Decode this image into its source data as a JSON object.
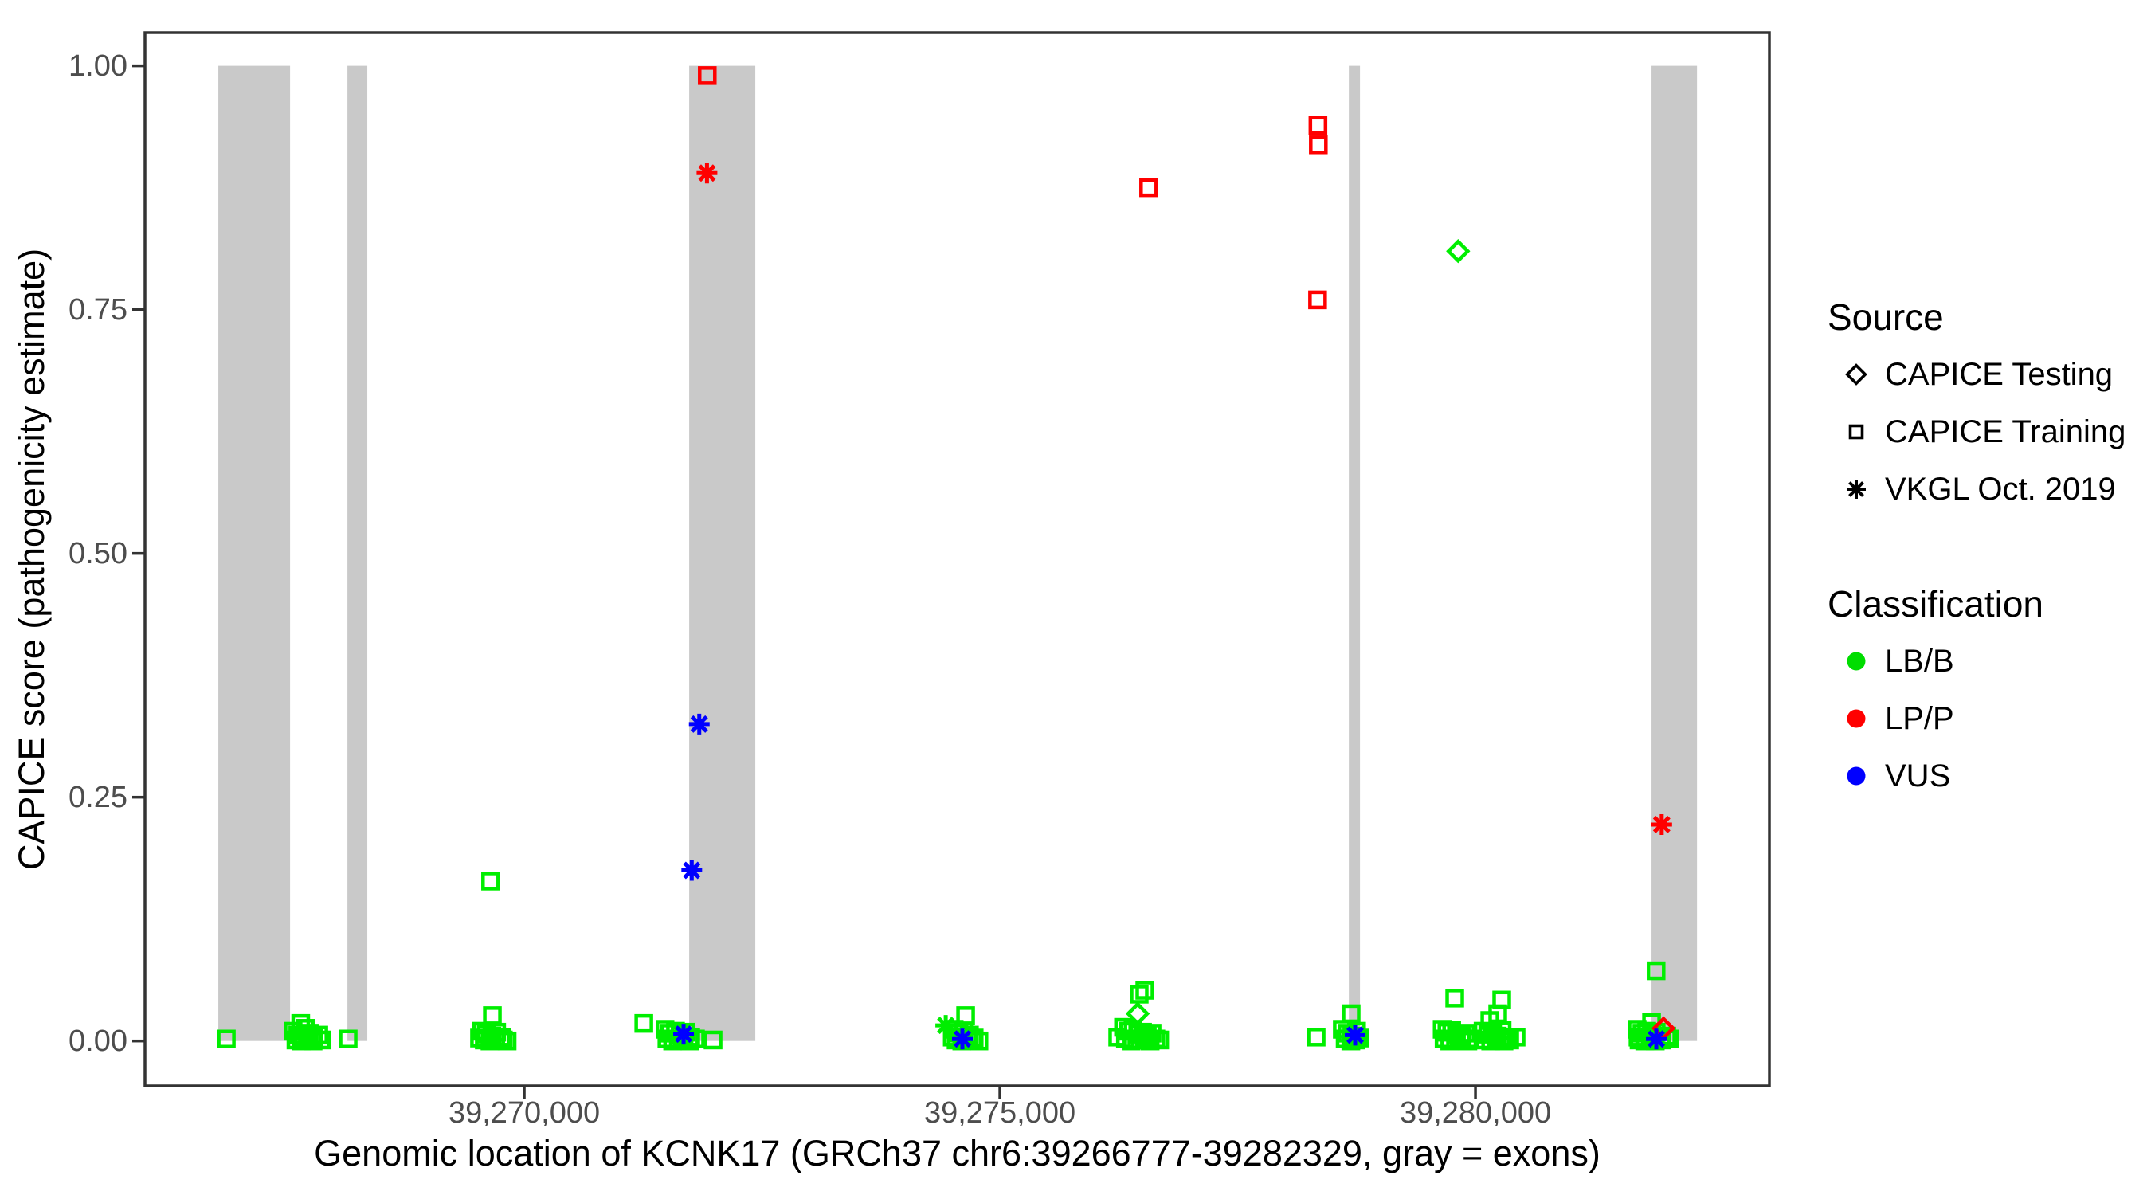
{
  "chart_data": {
    "type": "scatter",
    "title": "",
    "xlabel": "Genomic location of KCNK17 (GRCh37 chr6:39266777-39282329, gray = exons)",
    "ylabel": "CAPICE score (pathogenicity estimate)",
    "x_gene_range": [
      39266777,
      39282329
    ],
    "x_range": [
      39266013,
      39283090
    ],
    "y_range": [
      -0.046,
      1.034
    ],
    "ylim_labeled": [
      0.0,
      1.0
    ],
    "grid": "off",
    "x_ticks": [
      {
        "label": "39,270,000",
        "value": 39270000
      },
      {
        "label": "39,275,000",
        "value": 39275000
      },
      {
        "label": "39,280,000",
        "value": 39280000
      }
    ],
    "y_ticks": [
      {
        "label": "1.00",
        "value": 1.0
      },
      {
        "label": "0.75",
        "value": 0.75
      },
      {
        "label": "0.50",
        "value": 0.5
      },
      {
        "label": "0.25",
        "value": 0.25
      },
      {
        "label": "0.00",
        "value": 0.0
      }
    ],
    "colors": {
      "LB/B": "#00EE00",
      "LP/P": "#FF0000",
      "VUS": "#0000FF",
      "exon": "#C9C9C9",
      "axis": "#333333",
      "tick_text": "#4d4d4d"
    },
    "shapes": {
      "CAPICE Testing": "diamond",
      "CAPICE Training": "square",
      "VKGL Oct. 2019": "asterisk"
    },
    "exons_bp": [
      [
        39266784,
        39267538
      ],
      [
        39268141,
        39268350
      ],
      [
        39271734,
        39272429
      ],
      [
        39278669,
        39278786
      ],
      [
        39281851,
        39282329
      ]
    ],
    "point_format": [
      "bp",
      "score",
      "source",
      "classification"
    ],
    "points": [
      [
        39271924,
        0.99,
        "CAPICE Training",
        "LP/P"
      ],
      [
        39271921,
        0.89,
        "VKGL Oct. 2019",
        "LP/P"
      ],
      [
        39271840,
        0.325,
        "VKGL Oct. 2019",
        "VUS"
      ],
      [
        39271761,
        0.175,
        "VKGL Oct. 2019",
        "VUS"
      ],
      [
        39269646,
        0.164,
        "CAPICE Training",
        "LB/B"
      ],
      [
        39276564,
        0.875,
        "CAPICE Training",
        "LP/P"
      ],
      [
        39278344,
        0.939,
        "CAPICE Training",
        "LP/P"
      ],
      [
        39278348,
        0.919,
        "CAPICE Training",
        "LP/P"
      ],
      [
        39278340,
        0.76,
        "CAPICE Training",
        "LP/P"
      ],
      [
        39279818,
        0.81,
        "CAPICE Testing",
        "LB/B"
      ],
      [
        39281958,
        0.222,
        "VKGL Oct. 2019",
        "LP/P"
      ],
      [
        39281899,
        0.072,
        "CAPICE Training",
        "LB/B"
      ],
      [
        39266868,
        0.002,
        "CAPICE Training",
        "LB/B"
      ],
      [
        39267650,
        0.018,
        "CAPICE Training",
        "LB/B"
      ],
      [
        39267700,
        0.013,
        "CAPICE Training",
        "LB/B"
      ],
      [
        39267570,
        0.01,
        "CAPICE Training",
        "LB/B"
      ],
      [
        39267620,
        0.006,
        "CAPICE Training",
        "LB/B"
      ],
      [
        39267680,
        0.004,
        "CAPICE Training",
        "LB/B"
      ],
      [
        39267740,
        0.008,
        "CAPICE Training",
        "LB/B"
      ],
      [
        39267790,
        0.003,
        "CAPICE Training",
        "LB/B"
      ],
      [
        39267840,
        0.006,
        "CAPICE Training",
        "LB/B"
      ],
      [
        39267600,
        0.001,
        "CAPICE Training",
        "LB/B"
      ],
      [
        39267660,
        0.0,
        "CAPICE Training",
        "LB/B"
      ],
      [
        39267720,
        0.002,
        "CAPICE Training",
        "LB/B"
      ],
      [
        39267780,
        0.0,
        "CAPICE Training",
        "LB/B"
      ],
      [
        39267870,
        0.001,
        "CAPICE Training",
        "LB/B"
      ],
      [
        39268149,
        0.002,
        "CAPICE Training",
        "LB/B"
      ],
      [
        39269665,
        0.026,
        "CAPICE Training",
        "LB/B"
      ],
      [
        39269550,
        0.01,
        "CAPICE Training",
        "LB/B"
      ],
      [
        39269600,
        0.007,
        "CAPICE Training",
        "LB/B"
      ],
      [
        39269660,
        0.005,
        "CAPICE Training",
        "LB/B"
      ],
      [
        39269710,
        0.009,
        "CAPICE Training",
        "LB/B"
      ],
      [
        39269760,
        0.004,
        "CAPICE Training",
        "LB/B"
      ],
      [
        39269530,
        0.003,
        "CAPICE Training",
        "LB/B"
      ],
      [
        39269580,
        0.001,
        "CAPICE Training",
        "LB/B"
      ],
      [
        39269640,
        0.0,
        "CAPICE Training",
        "LB/B"
      ],
      [
        39269700,
        0.002,
        "CAPICE Training",
        "LB/B"
      ],
      [
        39269780,
        0.001,
        "CAPICE Training",
        "LB/B"
      ],
      [
        39269820,
        0.0,
        "CAPICE Training",
        "LB/B"
      ],
      [
        39271257,
        0.018,
        "CAPICE Training",
        "LB/B"
      ],
      [
        39271480,
        0.012,
        "CAPICE Training",
        "LB/B"
      ],
      [
        39271530,
        0.008,
        "CAPICE Training",
        "LB/B"
      ],
      [
        39271590,
        0.01,
        "CAPICE Training",
        "LB/B"
      ],
      [
        39271640,
        0.006,
        "CAPICE Training",
        "LB/B"
      ],
      [
        39271700,
        0.009,
        "CAPICE Training",
        "LB/B"
      ],
      [
        39271750,
        0.004,
        "CAPICE Training",
        "LB/B"
      ],
      [
        39271500,
        0.002,
        "CAPICE Training",
        "LB/B"
      ],
      [
        39271560,
        0.0,
        "CAPICE Training",
        "LB/B"
      ],
      [
        39271620,
        0.001,
        "CAPICE Training",
        "LB/B"
      ],
      [
        39271680,
        0.003,
        "CAPICE Training",
        "LB/B"
      ],
      [
        39271740,
        0.0,
        "CAPICE Training",
        "LB/B"
      ],
      [
        39271800,
        0.002,
        "CAPICE Training",
        "LB/B"
      ],
      [
        39271675,
        0.007,
        "VKGL Oct. 2019",
        "VUS"
      ],
      [
        39271985,
        0.001,
        "CAPICE Training",
        "LB/B"
      ],
      [
        39274431,
        0.016,
        "VKGL Oct. 2019",
        "LB/B"
      ],
      [
        39274640,
        0.026,
        "CAPICE Training",
        "LB/B"
      ],
      [
        39274520,
        0.012,
        "CAPICE Training",
        "LB/B"
      ],
      [
        39274570,
        0.008,
        "CAPICE Training",
        "LB/B"
      ],
      [
        39274620,
        0.01,
        "CAPICE Training",
        "LB/B"
      ],
      [
        39274680,
        0.006,
        "CAPICE Training",
        "LB/B"
      ],
      [
        39274730,
        0.003,
        "CAPICE Training",
        "LB/B"
      ],
      [
        39274540,
        0.001,
        "CAPICE Training",
        "LB/B"
      ],
      [
        39274600,
        0.0,
        "CAPICE Training",
        "LB/B"
      ],
      [
        39274660,
        0.002,
        "CAPICE Training",
        "LB/B"
      ],
      [
        39274720,
        0.001,
        "CAPICE Training",
        "LB/B"
      ],
      [
        39274780,
        0.0,
        "CAPICE Training",
        "LB/B"
      ],
      [
        39274500,
        0.004,
        "CAPICE Training",
        "LB/B"
      ],
      [
        39274606,
        0.002,
        "VKGL Oct. 2019",
        "VUS"
      ],
      [
        39276524,
        0.052,
        "CAPICE Training",
        "LB/B"
      ],
      [
        39276465,
        0.048,
        "CAPICE Training",
        "LB/B"
      ],
      [
        39276449,
        0.028,
        "CAPICE Testing",
        "LB/B"
      ],
      [
        39276239,
        0.004,
        "CAPICE Training",
        "LB/B"
      ],
      [
        39276300,
        0.014,
        "CAPICE Training",
        "LB/B"
      ],
      [
        39276350,
        0.01,
        "CAPICE Training",
        "LB/B"
      ],
      [
        39276400,
        0.012,
        "CAPICE Training",
        "LB/B"
      ],
      [
        39276450,
        0.007,
        "CAPICE Training",
        "LB/B"
      ],
      [
        39276500,
        0.009,
        "CAPICE Training",
        "LB/B"
      ],
      [
        39276550,
        0.005,
        "CAPICE Training",
        "LB/B"
      ],
      [
        39276600,
        0.008,
        "CAPICE Training",
        "LB/B"
      ],
      [
        39276320,
        0.002,
        "CAPICE Training",
        "LB/B"
      ],
      [
        39276380,
        0.0,
        "CAPICE Training",
        "LB/B"
      ],
      [
        39276440,
        0.001,
        "CAPICE Training",
        "LB/B"
      ],
      [
        39276520,
        0.003,
        "CAPICE Training",
        "LB/B"
      ],
      [
        39276580,
        0.0,
        "CAPICE Training",
        "LB/B"
      ],
      [
        39276640,
        0.002,
        "CAPICE Training",
        "LB/B"
      ],
      [
        39276680,
        0.001,
        "CAPICE Training",
        "LB/B"
      ],
      [
        39278325,
        0.004,
        "CAPICE Training",
        "LB/B"
      ],
      [
        39278693,
        0.028,
        "CAPICE Training",
        "LB/B"
      ],
      [
        39278600,
        0.012,
        "CAPICE Training",
        "LB/B"
      ],
      [
        39278650,
        0.008,
        "CAPICE Training",
        "LB/B"
      ],
      [
        39278700,
        0.005,
        "CAPICE Training",
        "LB/B"
      ],
      [
        39278750,
        0.01,
        "CAPICE Training",
        "LB/B"
      ],
      [
        39278630,
        0.002,
        "CAPICE Training",
        "LB/B"
      ],
      [
        39278690,
        0.0,
        "CAPICE Training",
        "LB/B"
      ],
      [
        39278740,
        0.001,
        "CAPICE Training",
        "LB/B"
      ],
      [
        39278780,
        0.003,
        "CAPICE Training",
        "LB/B"
      ],
      [
        39278735,
        0.006,
        "VKGL Oct. 2019",
        "VUS"
      ],
      [
        39279782,
        0.044,
        "CAPICE Training",
        "LB/B"
      ],
      [
        39279650,
        0.012,
        "CAPICE Training",
        "LB/B"
      ],
      [
        39279700,
        0.009,
        "CAPICE Training",
        "LB/B"
      ],
      [
        39279750,
        0.011,
        "CAPICE Training",
        "LB/B"
      ],
      [
        39279800,
        0.007,
        "CAPICE Training",
        "LB/B"
      ],
      [
        39279850,
        0.005,
        "CAPICE Training",
        "LB/B"
      ],
      [
        39279900,
        0.008,
        "CAPICE Training",
        "LB/B"
      ],
      [
        39279670,
        0.002,
        "CAPICE Training",
        "LB/B"
      ],
      [
        39279730,
        0.0,
        "CAPICE Training",
        "LB/B"
      ],
      [
        39279790,
        0.001,
        "CAPICE Training",
        "LB/B"
      ],
      [
        39279860,
        0.003,
        "CAPICE Training",
        "LB/B"
      ],
      [
        39279920,
        0.0,
        "CAPICE Training",
        "LB/B"
      ],
      [
        39279940,
        0.002,
        "CAPICE Training",
        "LB/B"
      ],
      [
        39280276,
        0.042,
        "CAPICE Training",
        "LB/B"
      ],
      [
        39280234,
        0.028,
        "CAPICE Training",
        "LB/B"
      ],
      [
        39280151,
        0.021,
        "CAPICE Training",
        "LB/B"
      ],
      [
        39280080,
        0.01,
        "CAPICE Training",
        "LB/B"
      ],
      [
        39280130,
        0.007,
        "CAPICE Training",
        "LB/B"
      ],
      [
        39280180,
        0.009,
        "CAPICE Training",
        "LB/B"
      ],
      [
        39280230,
        0.005,
        "CAPICE Training",
        "LB/B"
      ],
      [
        39280280,
        0.011,
        "CAPICE Training",
        "LB/B"
      ],
      [
        39280330,
        0.004,
        "CAPICE Training",
        "LB/B"
      ],
      [
        39280100,
        0.001,
        "CAPICE Training",
        "LB/B"
      ],
      [
        39280160,
        0.0,
        "CAPICE Training",
        "LB/B"
      ],
      [
        39280220,
        0.002,
        "CAPICE Training",
        "LB/B"
      ],
      [
        39280300,
        0.0,
        "CAPICE Training",
        "LB/B"
      ],
      [
        39280360,
        0.001,
        "CAPICE Training",
        "LB/B"
      ],
      [
        39280427,
        0.004,
        "CAPICE Training",
        "LB/B"
      ],
      [
        39281851,
        0.019,
        "CAPICE Training",
        "LB/B"
      ],
      [
        39281977,
        0.013,
        "CAPICE Testing",
        "LP/P"
      ],
      [
        39281901,
        0.002,
        "VKGL Oct. 2019",
        "VUS"
      ],
      [
        39281709,
        0.004,
        "CAPICE Training",
        "LB/B"
      ],
      [
        39281700,
        0.012,
        "CAPICE Training",
        "LB/B"
      ],
      [
        39281750,
        0.008,
        "CAPICE Training",
        "LB/B"
      ],
      [
        39281800,
        0.01,
        "CAPICE Training",
        "LB/B"
      ],
      [
        39281850,
        0.006,
        "CAPICE Training",
        "LB/B"
      ],
      [
        39281900,
        0.009,
        "CAPICE Training",
        "LB/B"
      ],
      [
        39281950,
        0.003,
        "CAPICE Training",
        "LB/B"
      ],
      [
        39281720,
        0.001,
        "CAPICE Training",
        "LB/B"
      ],
      [
        39281780,
        0.0,
        "CAPICE Training",
        "LB/B"
      ],
      [
        39281840,
        0.002,
        "CAPICE Training",
        "LB/B"
      ],
      [
        39281890,
        0.0,
        "CAPICE Training",
        "LB/B"
      ],
      [
        39281960,
        0.001,
        "CAPICE Training",
        "LB/B"
      ],
      [
        39282010,
        0.005,
        "CAPICE Training",
        "LB/B"
      ],
      [
        39282040,
        0.002,
        "CAPICE Training",
        "LB/B"
      ]
    ]
  },
  "legend": {
    "source": {
      "title": "Source",
      "items": [
        {
          "label": "CAPICE Testing",
          "symbol": "diamond"
        },
        {
          "label": "CAPICE Training",
          "symbol": "square"
        },
        {
          "label": "VKGL Oct. 2019",
          "symbol": "asterisk"
        }
      ]
    },
    "classification": {
      "title": "Classification",
      "items": [
        {
          "label": "LB/B",
          "color": "#00EE00"
        },
        {
          "label": "LP/P",
          "color": "#FF0000"
        },
        {
          "label": "VUS",
          "color": "#0000FF"
        }
      ]
    }
  }
}
